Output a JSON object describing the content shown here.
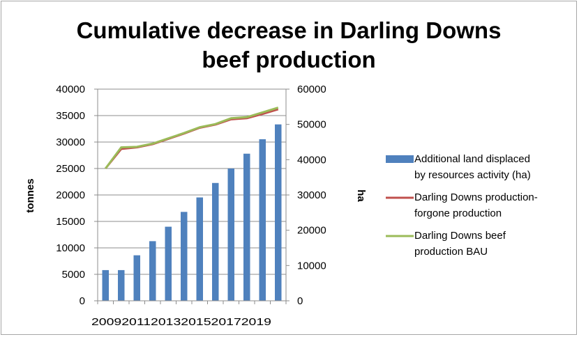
{
  "chart_data": {
    "type": "bar+line",
    "title_lines": [
      "Cumulative decrease in Darling Downs",
      "beef production"
    ],
    "left_axis": {
      "label": "tonnes",
      "min": 0,
      "max": 40000,
      "ticks": [
        "0",
        "5000",
        "10000",
        "15000",
        "20000",
        "25000",
        "30000",
        "35000",
        "40000"
      ]
    },
    "right_axis": {
      "label": "ha",
      "min": 0,
      "max": 60000,
      "ticks": [
        "0",
        "10000",
        "20000",
        "30000",
        "40000",
        "50000",
        "60000"
      ]
    },
    "categories": [
      2009,
      2010,
      2011,
      2012,
      2013,
      2014,
      2015,
      2016,
      2017,
      2018,
      2019,
      2020
    ],
    "x_tick_labels": [
      "2009",
      "2011",
      "2013",
      "2015",
      "2017",
      "2019"
    ],
    "series": [
      {
        "name": "Additional land displaced by resources activity (ha)",
        "legend_lines": [
          "Additional land displaced",
          "by resources activity (ha)"
        ],
        "type": "bar",
        "axis": "right",
        "color": "#4f81bd",
        "values": [
          8700,
          8700,
          12900,
          16900,
          21000,
          25200,
          29300,
          33400,
          37500,
          41700,
          45800,
          50000
        ]
      },
      {
        "name": "Darling Downs production-forgone production",
        "legend_lines": [
          "Darling Downs production-",
          "forgone production"
        ],
        "type": "line",
        "axis": "left",
        "color": "#c0504d",
        "values": [
          25000,
          28700,
          29000,
          29600,
          30600,
          31600,
          32700,
          33300,
          34300,
          34500,
          35300,
          36200
        ]
      },
      {
        "name": "Darling Downs beef production BAU",
        "legend_lines": [
          "Darling Downs beef",
          "production BAU"
        ],
        "type": "line",
        "axis": "left",
        "color": "#9bbb59",
        "values": [
          25000,
          29000,
          29100,
          29700,
          30700,
          31700,
          32800,
          33400,
          34500,
          34700,
          35600,
          36500
        ]
      }
    ],
    "grid": true,
    "legend_position": "right"
  }
}
